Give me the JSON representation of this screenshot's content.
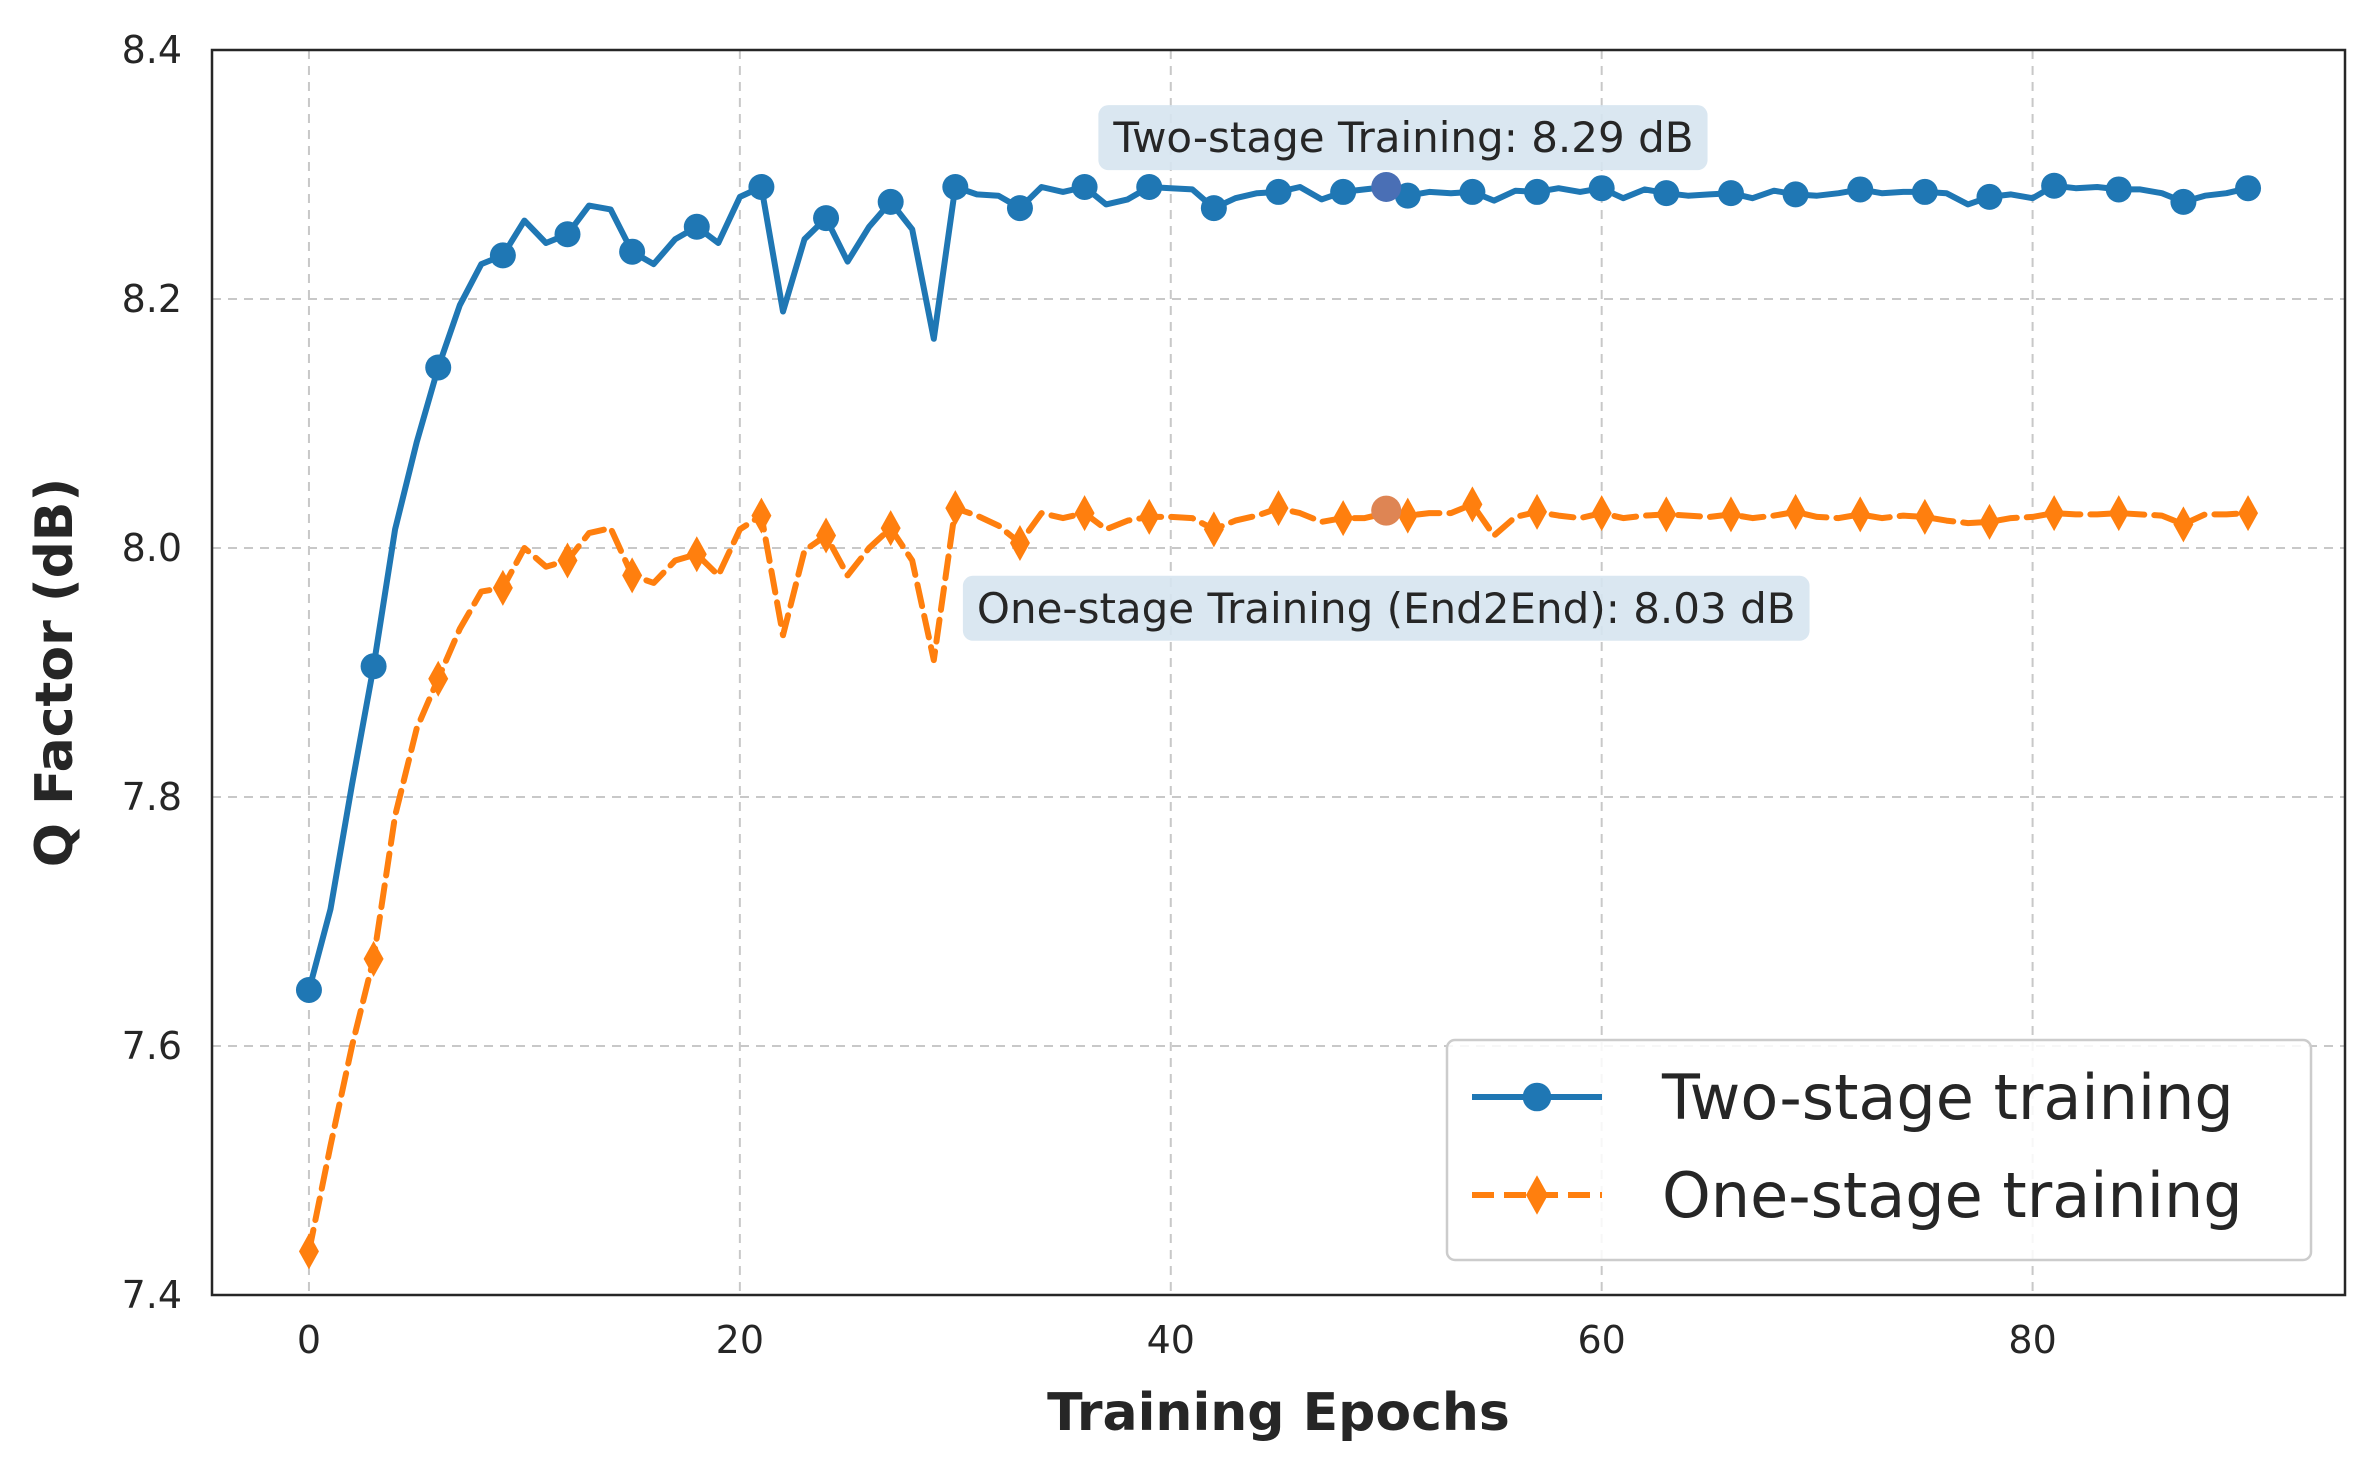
{
  "chart_data": {
    "type": "line",
    "title": "",
    "xlabel": "Training Epochs",
    "ylabel": "Q Factor (dB)",
    "xlim": [
      -4.5,
      94.5
    ],
    "ylim": [
      7.4,
      8.4
    ],
    "xticks": [
      0,
      20,
      40,
      60,
      80
    ],
    "yticks": [
      7.4,
      7.6,
      7.8,
      8.0,
      8.2,
      8.4
    ],
    "xtick_labels": [
      "0",
      "20",
      "40",
      "60",
      "80"
    ],
    "ytick_labels": [
      "7.4",
      "7.6",
      "7.8",
      "8.0",
      "8.2",
      "8.4"
    ],
    "grid": true,
    "legend_position": "lower-right",
    "series": [
      {
        "name": "Two-stage training",
        "color": "#1f77b4",
        "line_style": "solid",
        "marker": "circle",
        "marker_every": 3,
        "x": [
          0,
          1,
          2,
          3,
          4,
          5,
          6,
          7,
          8,
          9,
          10,
          11,
          12,
          13,
          14,
          15,
          16,
          17,
          18,
          19,
          20,
          21,
          22,
          23,
          24,
          25,
          26,
          27,
          28,
          29,
          30,
          31,
          32,
          33,
          34,
          35,
          36,
          37,
          38,
          39,
          40,
          41,
          42,
          43,
          44,
          45,
          46,
          47,
          48,
          49,
          50,
          51,
          52,
          53,
          54,
          55,
          56,
          57,
          58,
          59,
          60,
          61,
          62,
          63,
          64,
          65,
          66,
          67,
          68,
          69,
          70,
          71,
          72,
          73,
          74,
          75,
          76,
          77,
          78,
          79,
          80,
          81,
          82,
          83,
          84,
          85,
          86,
          87,
          88,
          89,
          90
        ],
        "y": [
          7.645,
          7.71,
          7.81,
          7.905,
          8.015,
          8.085,
          8.145,
          8.195,
          8.228,
          8.235,
          8.263,
          8.245,
          8.252,
          8.275,
          8.272,
          8.238,
          8.228,
          8.248,
          8.258,
          8.245,
          8.282,
          8.29,
          8.19,
          8.248,
          8.265,
          8.23,
          8.258,
          8.278,
          8.256,
          8.168,
          8.29,
          8.284,
          8.283,
          8.273,
          8.29,
          8.286,
          8.29,
          8.276,
          8.28,
          8.29,
          8.289,
          8.288,
          8.273,
          8.281,
          8.285,
          8.286,
          8.29,
          8.28,
          8.286,
          8.288,
          8.29,
          8.283,
          8.286,
          8.285,
          8.286,
          8.279,
          8.287,
          8.286,
          8.289,
          8.286,
          8.289,
          8.281,
          8.288,
          8.285,
          8.283,
          8.284,
          8.285,
          8.281,
          8.287,
          8.284,
          8.283,
          8.285,
          8.288,
          8.285,
          8.286,
          8.286,
          8.285,
          8.276,
          8.282,
          8.284,
          8.281,
          8.291,
          8.289,
          8.29,
          8.288,
          8.288,
          8.285,
          8.278,
          8.283,
          8.285,
          8.289
        ]
      },
      {
        "name": "One-stage training",
        "color": "#ff7f0e",
        "line_style": "dashed",
        "marker": "thin-diamond",
        "marker_every": 3,
        "x": [
          0,
          1,
          2,
          3,
          4,
          5,
          6,
          7,
          8,
          9,
          10,
          11,
          12,
          13,
          14,
          15,
          16,
          17,
          18,
          19,
          20,
          21,
          22,
          23,
          24,
          25,
          26,
          27,
          28,
          29,
          30,
          31,
          32,
          33,
          34,
          35,
          36,
          37,
          38,
          39,
          40,
          41,
          42,
          43,
          44,
          45,
          46,
          47,
          48,
          49,
          50,
          51,
          52,
          53,
          54,
          55,
          56,
          57,
          58,
          59,
          60,
          61,
          62,
          63,
          64,
          65,
          66,
          67,
          68,
          69,
          70,
          71,
          72,
          73,
          74,
          75,
          76,
          77,
          78,
          79,
          80,
          81,
          82,
          83,
          84,
          85,
          86,
          87,
          88,
          89,
          90
        ],
        "y": [
          7.435,
          7.52,
          7.6,
          7.67,
          7.785,
          7.855,
          7.895,
          7.935,
          7.965,
          7.968,
          8.0,
          7.985,
          7.99,
          8.012,
          8.016,
          7.978,
          7.972,
          7.99,
          7.995,
          7.978,
          8.015,
          8.026,
          7.93,
          7.998,
          8.01,
          7.978,
          8.0,
          8.016,
          7.99,
          7.91,
          8.032,
          8.026,
          8.018,
          8.004,
          8.028,
          8.024,
          8.028,
          8.015,
          8.022,
          8.025,
          8.025,
          8.024,
          8.015,
          8.022,
          8.026,
          8.032,
          8.028,
          8.021,
          8.024,
          8.024,
          8.028,
          8.026,
          8.028,
          8.028,
          8.035,
          8.01,
          8.025,
          8.029,
          8.026,
          8.024,
          8.028,
          8.024,
          8.026,
          8.027,
          8.026,
          8.025,
          8.027,
          8.024,
          8.026,
          8.029,
          8.025,
          8.024,
          8.027,
          8.024,
          8.026,
          8.025,
          8.022,
          8.02,
          8.021,
          8.024,
          8.025,
          8.028,
          8.027,
          8.027,
          8.028,
          8.027,
          8.026,
          8.019,
          8.027,
          8.027,
          8.028
        ]
      }
    ],
    "highlights": [
      {
        "series": 0,
        "x": 50,
        "y": 8.29,
        "color": "#4a6fb5"
      },
      {
        "series": 1,
        "x": 50,
        "y": 8.03,
        "color": "#de8554"
      }
    ],
    "annotations": [
      {
        "text": "Two-stage Training: 8.29 dB",
        "x": 50.8,
        "y": 8.33
      },
      {
        "text": "One-stage Training (End2End): 8.03 dB",
        "x": 50.0,
        "y": 7.952
      }
    ],
    "annotation_box_color": "#d6e4ef"
  }
}
